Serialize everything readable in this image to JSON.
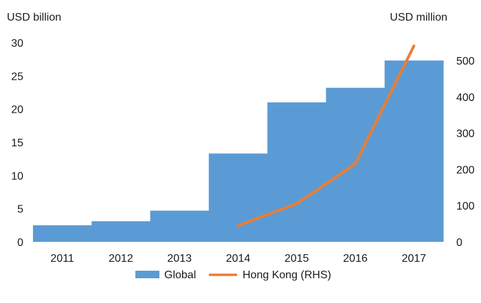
{
  "chart_data": {
    "type": "bar",
    "categories": [
      "2011",
      "2012",
      "2013",
      "2014",
      "2015",
      "2016",
      "2017"
    ],
    "left_axis": {
      "unit_label": "USD billion",
      "ylim": [
        0,
        30
      ],
      "ticks": [
        0,
        5,
        10,
        15,
        20,
        25,
        30
      ]
    },
    "right_axis": {
      "unit_label": "USD million",
      "ylim": [
        0,
        550
      ],
      "ticks": [
        0,
        100,
        200,
        300,
        400,
        500
      ]
    },
    "series": [
      {
        "name": "Global",
        "type": "bar",
        "axis": "left",
        "color": "#5b9bd5",
        "values": [
          2.5,
          3.1,
          4.7,
          13.3,
          21.0,
          23.2,
          27.3
        ]
      },
      {
        "name": "Hong Kong (RHS)",
        "type": "line",
        "axis": "right",
        "color": "#ed7d31",
        "values": [
          null,
          null,
          null,
          45,
          105,
          215,
          540
        ]
      }
    ],
    "grid": false,
    "legend_position": "bottom"
  }
}
